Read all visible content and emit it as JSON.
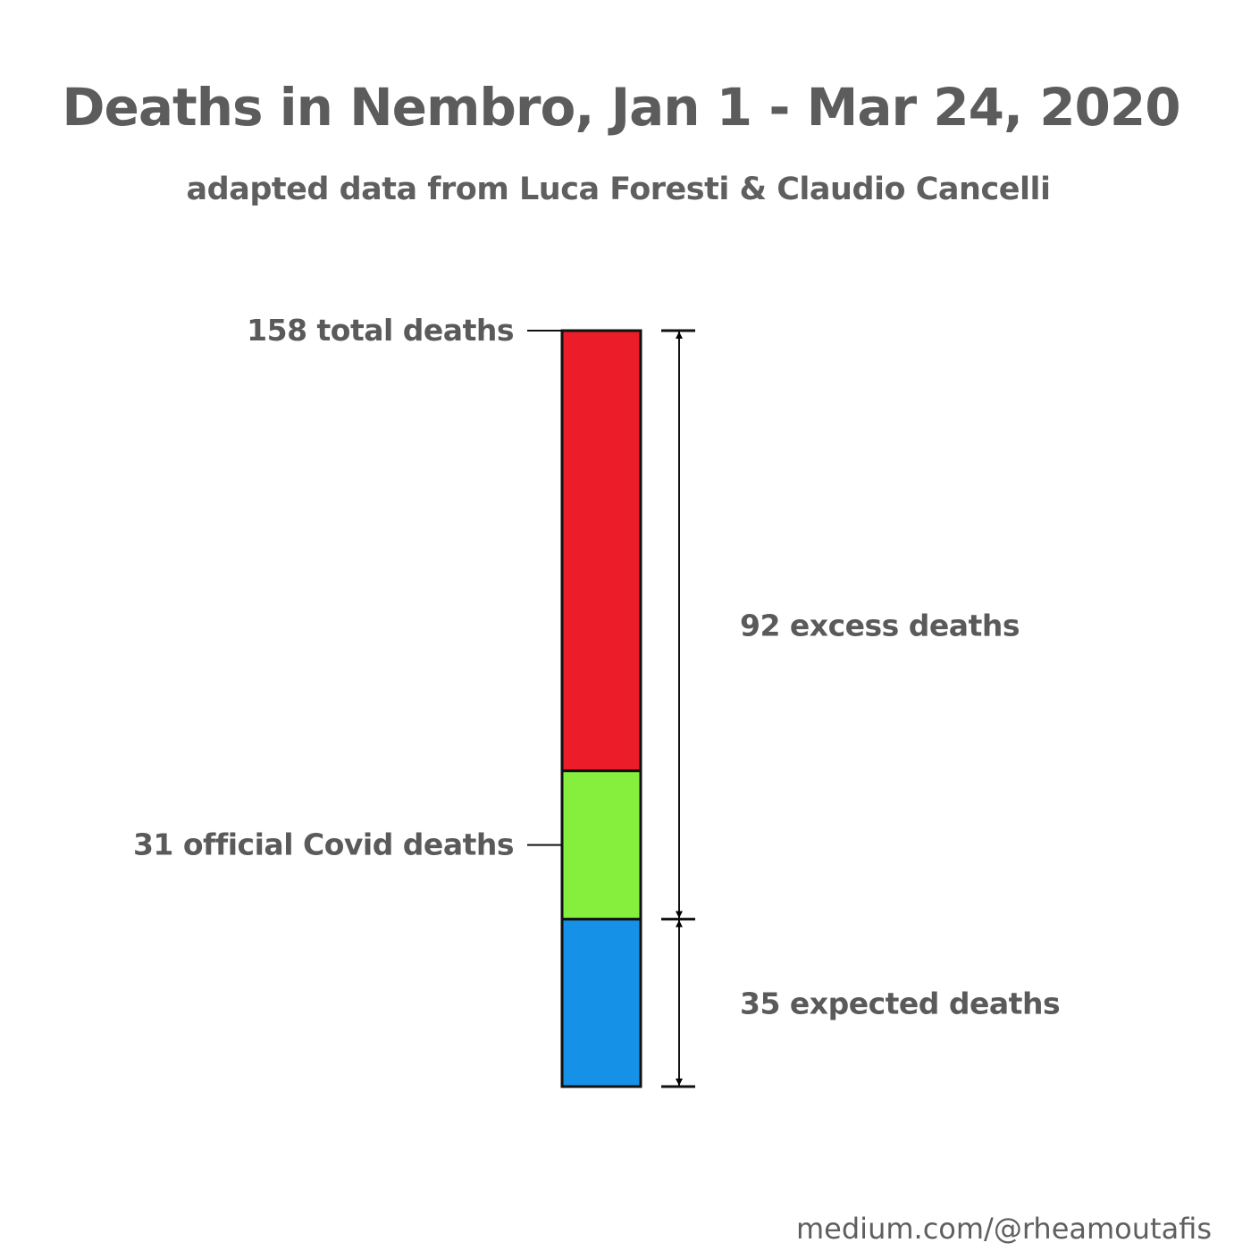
{
  "title": "Deaths in Nembro, Jan 1 - Mar 24, 2020",
  "subtitle": "adapted data from Luca Foresti & Claudio Cancelli",
  "footer": "medium.com/@rheamoutafis",
  "chart_data": {
    "type": "bar",
    "title": "Deaths in Nembro, Jan 1 - Mar 24, 2020",
    "stacked": true,
    "scale_max": 158,
    "segments": [
      {
        "value": 35,
        "color": "#1592e8"
      },
      {
        "value": 31,
        "color": "#86ee3c"
      },
      {
        "value": 92,
        "color": "#ec1c28"
      }
    ],
    "labels": {
      "total": "158 total deaths",
      "covid": "31 official Covid deaths",
      "excess": "92 excess deaths",
      "expected": "35 expected deaths"
    },
    "values": {
      "total": 158,
      "covid": 31,
      "excess": 92,
      "expected": 35
    }
  }
}
